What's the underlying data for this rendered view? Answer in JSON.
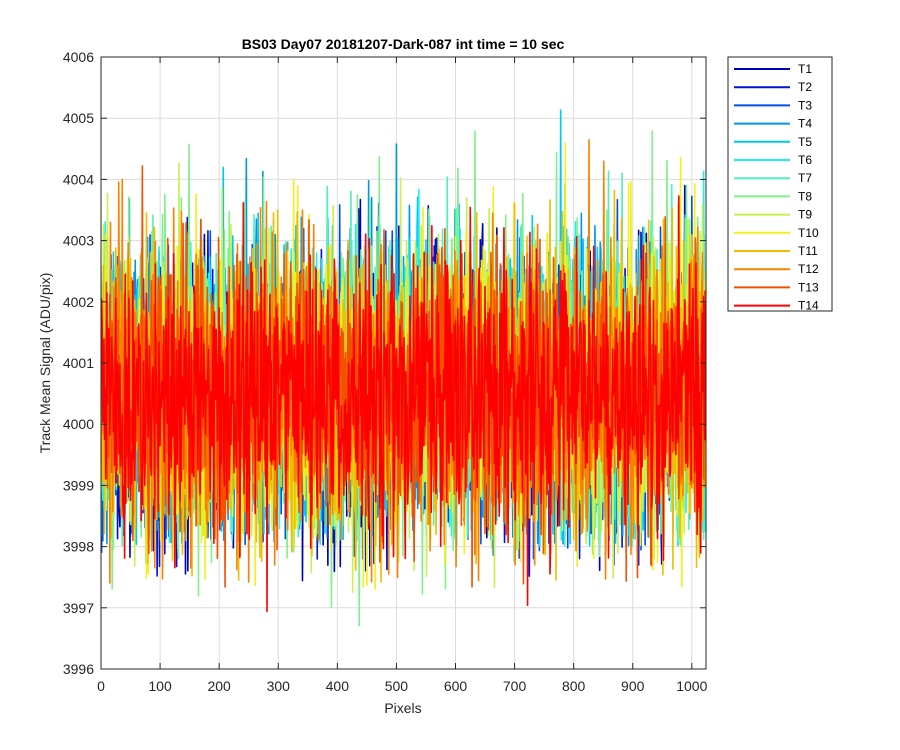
{
  "chart_data": {
    "type": "line",
    "title": "BS03 Day07 20181207-Dark-087 int time = 10 sec",
    "xlabel": "Pixels",
    "ylabel": "Track Mean Signal (ADU/pix)",
    "xlim": [
      0,
      1024
    ],
    "ylim": [
      3996,
      4006
    ],
    "xticks": [
      0,
      100,
      200,
      300,
      400,
      500,
      600,
      700,
      800,
      900,
      1000
    ],
    "yticks": [
      3996,
      3997,
      3998,
      3999,
      4000,
      4001,
      4002,
      4003,
      4004,
      4005,
      4006
    ],
    "grid": true,
    "legend_position": "outside-top-right",
    "points_per_series": 1024,
    "series": [
      {
        "name": "T1",
        "color": "#0000b4",
        "mean": 4000.4,
        "min": 3997.4,
        "max": 4004.6
      },
      {
        "name": "T2",
        "color": "#0014d2",
        "mean": 4000.4,
        "min": 3997.5,
        "max": 4004.8
      },
      {
        "name": "T3",
        "color": "#0050e6",
        "mean": 4000.5,
        "min": 3997.8,
        "max": 4004.9
      },
      {
        "name": "T4",
        "color": "#0096e6",
        "mean": 4000.6,
        "min": 3998.0,
        "max": 4005.8
      },
      {
        "name": "T5",
        "color": "#00c8f0",
        "mean": 4000.6,
        "min": 3998.0,
        "max": 4005.4
      },
      {
        "name": "T6",
        "color": "#1ef0f0",
        "mean": 4000.6,
        "min": 3998.0,
        "max": 4005.3
      },
      {
        "name": "T7",
        "color": "#50f0be",
        "mean": 4000.6,
        "min": 3998.0,
        "max": 4005.3
      },
      {
        "name": "T8",
        "color": "#82f08c",
        "mean": 4000.6,
        "min": 3996.7,
        "max": 4005.0
      },
      {
        "name": "T9",
        "color": "#c8f050",
        "mean": 4000.5,
        "min": 3997.0,
        "max": 4005.0
      },
      {
        "name": "T10",
        "color": "#f0f01e",
        "mean": 4000.5,
        "min": 3997.3,
        "max": 4005.2
      },
      {
        "name": "T11",
        "color": "#f0be00",
        "mean": 4000.5,
        "min": 3997.4,
        "max": 4005.2
      },
      {
        "name": "T12",
        "color": "#fa8200",
        "mean": 4000.5,
        "min": 3997.4,
        "max": 4005.3
      },
      {
        "name": "T13",
        "color": "#f55000",
        "mean": 4000.5,
        "min": 3997.3,
        "max": 4004.4
      },
      {
        "name": "T14",
        "color": "#ff0000",
        "mean": 4000.5,
        "min": 3996.8,
        "max": 4003.8
      }
    ]
  }
}
